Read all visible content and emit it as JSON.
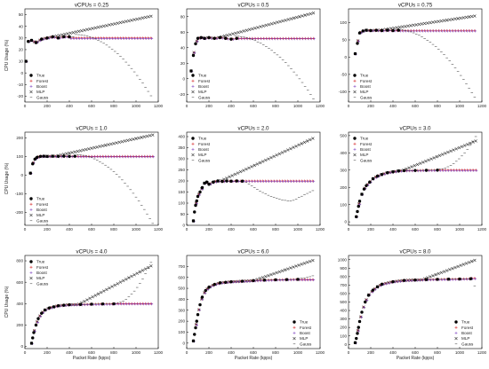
{
  "figure": {
    "series_styles": {
      "True": {
        "color": "#000000",
        "marker": "dot"
      },
      "Forest": {
        "color": "#d62728",
        "marker": "plus"
      },
      "Boost": {
        "color": "#7b3fbf",
        "marker": "plus"
      },
      "MLP": {
        "color": "#222222",
        "marker": "x"
      },
      "Gauss": {
        "color": "#333333",
        "marker": "dash"
      }
    },
    "xlabel": "Packet Rate (kpps)",
    "ylabel": "CPU Usage (%)"
  },
  "chart_data": [
    {
      "type": "scatter",
      "title": "vCPUs = 0.25",
      "xlabel": "",
      "ylabel": "CPU Usage (%)",
      "xlim": [
        0,
        1200
      ],
      "ylim": [
        -25,
        55
      ],
      "xticks": [
        0,
        200,
        400,
        600,
        800,
        1000,
        1200
      ],
      "yticks": [
        -20,
        -10,
        0,
        10,
        20,
        30,
        40,
        50
      ],
      "legend": "bottom-left",
      "legend_entries": [
        "True",
        "Forest",
        "Boost",
        "MLP",
        "Gauss"
      ],
      "true_curve": {
        "x": [
          10,
          30,
          60,
          100,
          150,
          200,
          250,
          300,
          350,
          400
        ],
        "y": [
          10,
          27,
          28,
          26,
          29,
          30,
          31,
          30,
          31,
          31
        ]
      },
      "plateau": 30,
      "mlp_end": 49,
      "gauss": {
        "peak_x": 450,
        "peak_y": 33,
        "end_y": -22
      }
    },
    {
      "type": "scatter",
      "title": "vCPUs = 0.5",
      "xlabel": "",
      "ylabel": "",
      "xlim": [
        0,
        1200
      ],
      "ylim": [
        -30,
        90
      ],
      "xticks": [
        0,
        200,
        400,
        600,
        800,
        1000,
        1200
      ],
      "yticks": [
        -20,
        0,
        20,
        40,
        60,
        80
      ],
      "legend": "bottom-left",
      "legend_entries": [
        "True",
        "Forest",
        "Boost",
        "MLP",
        "Gauss"
      ],
      "true_curve": {
        "x": [
          40,
          60,
          80,
          100,
          130,
          160,
          200,
          250,
          300,
          350,
          400,
          450
        ],
        "y": [
          10,
          30,
          45,
          52,
          53,
          52,
          53,
          52,
          53,
          52,
          51,
          52
        ]
      },
      "plateau": 52,
      "mlp_end": 85,
      "gauss": {
        "peak_x": 420,
        "peak_y": 55,
        "end_y": -28
      }
    },
    {
      "type": "scatter",
      "title": "vCPUs = 0.75",
      "xlabel": "",
      "ylabel": "",
      "xlim": [
        0,
        1200
      ],
      "ylim": [
        -130,
        140
      ],
      "xticks": [
        0,
        200,
        400,
        600,
        800,
        1000,
        1200
      ],
      "yticks": [
        -100,
        -50,
        0,
        50,
        100
      ],
      "legend": "bottom-left",
      "legend_entries": [
        "True",
        "Forest",
        "Boost",
        "MLP",
        "Gauss"
      ],
      "true_curve": {
        "x": [
          60,
          80,
          100,
          130,
          160,
          200,
          250,
          300,
          350,
          400,
          450
        ],
        "y": [
          10,
          40,
          70,
          76,
          78,
          77,
          78,
          77,
          78,
          77,
          78
        ]
      },
      "plateau": 77,
      "mlp_end": 120,
      "gauss": {
        "peak_x": 430,
        "peak_y": 80,
        "end_y": -125
      }
    },
    {
      "type": "scatter",
      "title": "vCPUs = 1.0",
      "xlabel": "",
      "ylabel": "CPU Usage (%)",
      "xlim": [
        0,
        1200
      ],
      "ylim": [
        -270,
        230
      ],
      "xticks": [
        0,
        200,
        400,
        600,
        800,
        1000,
        1200
      ],
      "yticks": [
        -200,
        -100,
        0,
        100,
        200
      ],
      "legend": "bottom-left",
      "legend_entries": [
        "True",
        "Forest",
        "Boost",
        "MLP",
        "Gauss"
      ],
      "true_curve": {
        "x": [
          50,
          70,
          90,
          110,
          140,
          170,
          200,
          250,
          300,
          350,
          400,
          450
        ],
        "y": [
          10,
          60,
          85,
          95,
          100,
          101,
          100,
          101,
          100,
          101,
          100,
          101
        ]
      },
      "plateau": 100,
      "mlp_end": 215,
      "gauss": {
        "peak_x": 450,
        "peak_y": 110,
        "end_y": -260
      }
    },
    {
      "type": "scatter",
      "title": "vCPUs = 2.0",
      "xlabel": "",
      "ylabel": "",
      "xlim": [
        0,
        1200
      ],
      "ylim": [
        0,
        420
      ],
      "xticks": [
        0,
        200,
        400,
        600,
        800,
        1000,
        1200
      ],
      "yticks": [
        0,
        50,
        100,
        150,
        200,
        250,
        300,
        350,
        400
      ],
      "legend": "top-left",
      "legend_entries": [
        "True",
        "Forest",
        "Boost",
        "MLP",
        "Gauss"
      ],
      "true_curve": {
        "x": [
          60,
          70,
          80,
          90,
          100,
          120,
          140,
          160,
          180,
          200,
          240,
          280,
          320,
          360,
          400,
          450,
          500
        ],
        "y": [
          20,
          60,
          90,
          110,
          130,
          150,
          170,
          190,
          195,
          185,
          195,
          200,
          198,
          200,
          199,
          200,
          199
        ]
      },
      "plateau": 200,
      "mlp_end": 395,
      "gauss": {
        "peak_x": 500,
        "peak_y": 205,
        "end_y": 160,
        "dip_x": 950,
        "dip_y": 110
      }
    },
    {
      "type": "scatter",
      "title": "vCPUs = 3.0",
      "xlabel": "",
      "ylabel": "",
      "xlim": [
        0,
        1200
      ],
      "ylim": [
        -20,
        520
      ],
      "xticks": [
        0,
        200,
        400,
        600,
        800,
        1000,
        1200
      ],
      "yticks": [
        0,
        100,
        200,
        300,
        400,
        500
      ],
      "legend": "top-left",
      "legend_entries": [
        "True",
        "Forest",
        "Boost",
        "MLP",
        "Gauss"
      ],
      "true_curve": {
        "x": [
          70,
          80,
          90,
          100,
          120,
          140,
          160,
          190,
          220,
          260,
          300,
          350,
          400,
          450,
          500,
          600,
          700,
          800
        ],
        "y": [
          30,
          60,
          90,
          120,
          160,
          190,
          210,
          230,
          250,
          265,
          275,
          285,
          290,
          295,
          297,
          298,
          299,
          300
        ]
      },
      "plateau": 300,
      "mlp_end": 470,
      "gauss": {
        "peak_x": 800,
        "peak_y": 305,
        "end_y": 500
      }
    },
    {
      "type": "scatter",
      "title": "vCPUs = 4.0",
      "xlabel": "Packet Rate (kpps)",
      "ylabel": "CPU Usage (%)",
      "xlim": [
        0,
        1200
      ],
      "ylim": [
        -20,
        850
      ],
      "xticks": [
        0,
        200,
        400,
        600,
        800,
        1000,
        1200
      ],
      "yticks": [
        0,
        200,
        400,
        600,
        800
      ],
      "legend": "top-left",
      "legend_entries": [
        "True",
        "Forest",
        "Boost",
        "MLP",
        "Gauss"
      ],
      "true_curve": {
        "x": [
          60,
          70,
          80,
          100,
          120,
          150,
          180,
          220,
          260,
          300,
          350,
          400,
          500,
          600,
          700,
          800
        ],
        "y": [
          30,
          80,
          130,
          200,
          260,
          310,
          340,
          360,
          370,
          380,
          385,
          390,
          392,
          395,
          397,
          398
        ]
      },
      "plateau": 400,
      "mlp_end": 760,
      "gauss": {
        "peak_x": 800,
        "peak_y": 400,
        "end_y": 820
      }
    },
    {
      "type": "scatter",
      "title": "vCPUs = 6.0",
      "xlabel": "Packet Rate (kpps)",
      "ylabel": "",
      "xlim": [
        0,
        1200
      ],
      "ylim": [
        -50,
        800
      ],
      "xticks": [
        0,
        200,
        400,
        600,
        800,
        1000,
        1200
      ],
      "yticks": [
        0,
        100,
        200,
        300,
        400,
        500,
        600,
        700
      ],
      "legend": "bottom-right",
      "legend_entries": [
        "True",
        "Forest",
        "Boost",
        "MLP",
        "Gauss"
      ],
      "true_curve": {
        "x": [
          60,
          70,
          80,
          90,
          100,
          120,
          140,
          170,
          200,
          250,
          300,
          350,
          400,
          500,
          600,
          700,
          800,
          900,
          1000
        ],
        "y": [
          20,
          80,
          140,
          200,
          260,
          350,
          420,
          480,
          510,
          535,
          550,
          555,
          560,
          565,
          570,
          575,
          578,
          580,
          582
        ]
      },
      "plateau": 580,
      "mlp_end": 760,
      "gauss": {
        "peak_x": 1000,
        "peak_y": 590,
        "end_y": 620
      }
    },
    {
      "type": "scatter",
      "title": "vCPUs = 8.0",
      "xlabel": "Packet Rate (kpps)",
      "ylabel": "",
      "xlim": [
        0,
        1200
      ],
      "ylim": [
        -50,
        1050
      ],
      "xticks": [
        0,
        200,
        400,
        600,
        800,
        1000,
        1200
      ],
      "yticks": [
        0,
        100,
        200,
        300,
        400,
        500,
        600,
        700,
        800,
        900,
        1000
      ],
      "legend": "bottom-right",
      "legend_entries": [
        "True",
        "Forest",
        "Boost",
        "MLP",
        "Gauss"
      ],
      "true_curve": {
        "x": [
          60,
          70,
          80,
          90,
          100,
          120,
          150,
          180,
          220,
          260,
          300,
          400,
          500,
          600,
          700,
          800,
          900,
          1000,
          1100
        ],
        "y": [
          20,
          70,
          130,
          200,
          270,
          380,
          500,
          580,
          640,
          680,
          710,
          740,
          755,
          760,
          765,
          768,
          770,
          772,
          775
        ]
      },
      "plateau": 780,
      "mlp_end": 1000,
      "gauss": {
        "peak_x": 1100,
        "peak_y": 780,
        "end_y": 600
      }
    }
  ]
}
